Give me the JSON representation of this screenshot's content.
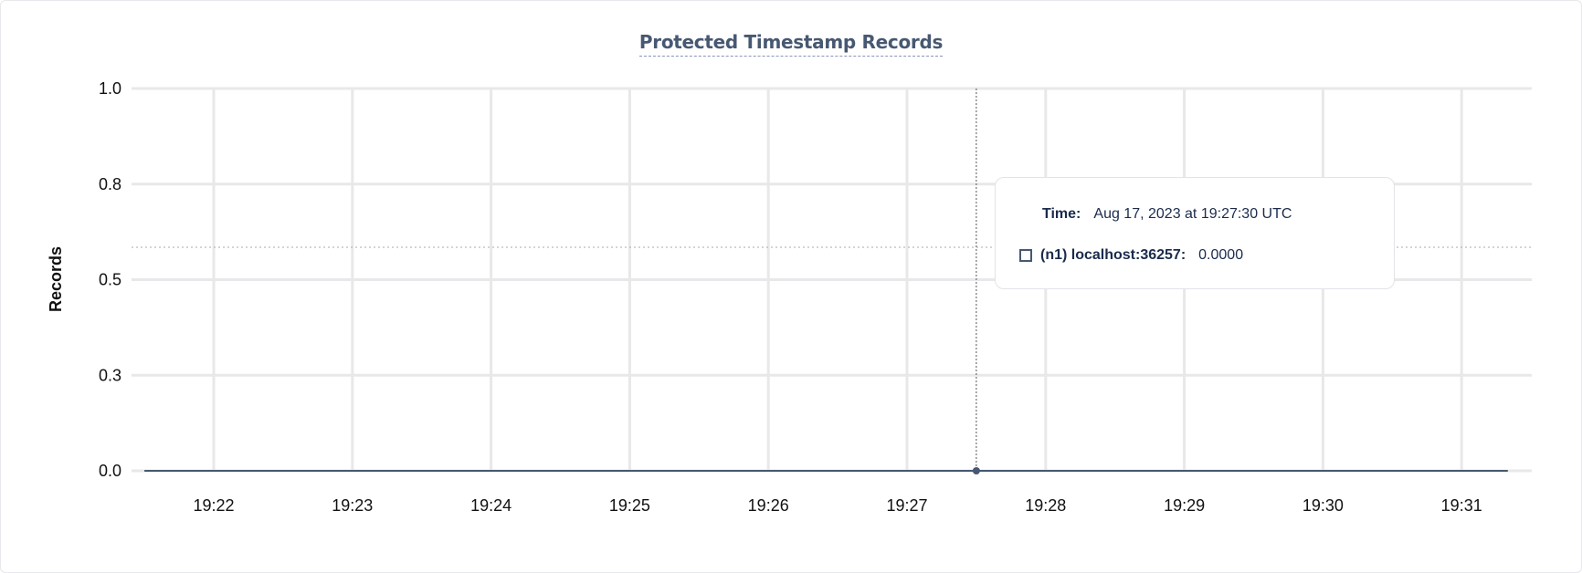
{
  "chart_data": {
    "type": "line",
    "title": "Protected Timestamp Records",
    "ylabel": "Records",
    "xlabel": "",
    "y_ticks": [
      "0.0",
      "0.3",
      "0.5",
      "0.8",
      "1.0"
    ],
    "ylim": [
      0,
      1
    ],
    "x_ticks": [
      "19:22",
      "19:23",
      "19:24",
      "19:25",
      "19:26",
      "19:27",
      "19:28",
      "19:29",
      "19:30",
      "19:31"
    ],
    "xlim": [
      "19:21:30",
      "19:31:20"
    ],
    "grid": true,
    "series": [
      {
        "name": "(n1) localhost:36257",
        "color": "#475872",
        "x": [
          "19:21:30",
          "19:31:20"
        ],
        "values": [
          0,
          0
        ]
      }
    ],
    "hover": {
      "x": "19:27:30",
      "y": 0
    }
  },
  "tooltip": {
    "time_label": "Time:",
    "time_value": "Aug 17, 2023 at 19:27:30 UTC",
    "series_label": "(n1) localhost:36257:",
    "series_value": "0.0000"
  }
}
